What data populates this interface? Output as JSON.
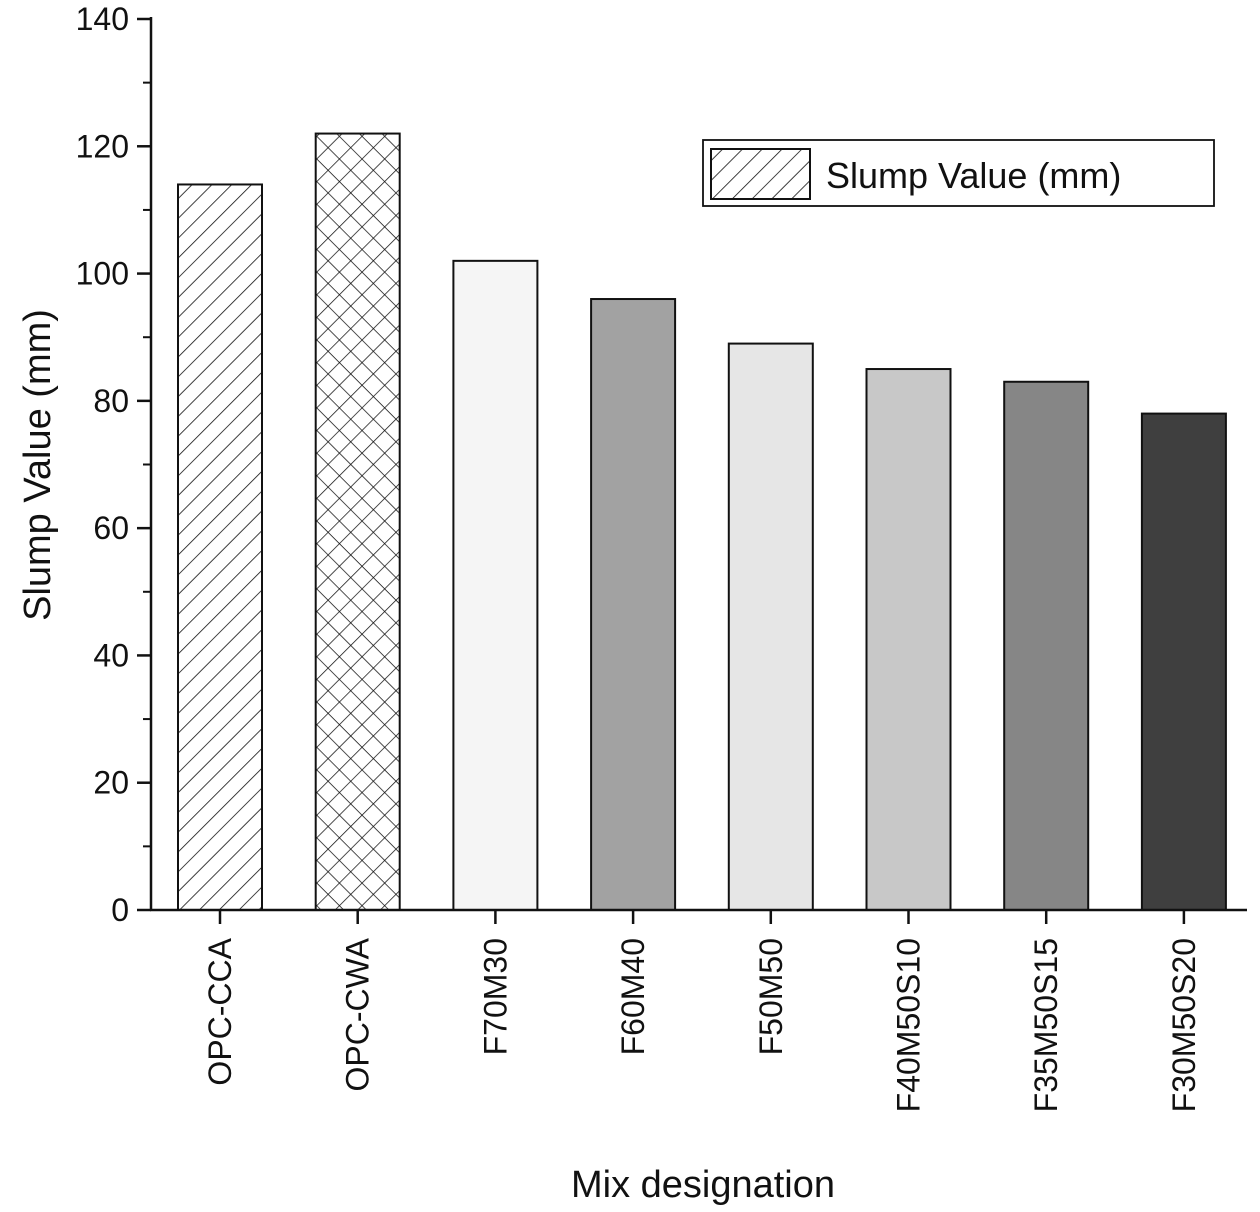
{
  "chart_data": {
    "type": "bar",
    "title": "",
    "xlabel": "Mix designation",
    "ylabel": "Slump Value (mm)",
    "ylim": [
      0,
      140
    ],
    "yticks": [
      0,
      20,
      40,
      60,
      80,
      100,
      120,
      140
    ],
    "categories": [
      "OPC-CCA",
      "OPC-CWA",
      "F70M30",
      "F60M40",
      "F50M50",
      "F40M50S10",
      "F35M50S15",
      "F30M50S20"
    ],
    "series": [
      {
        "name": "Slump Value (mm)",
        "values": [
          114,
          122,
          102,
          96,
          89,
          85,
          83,
          78
        ]
      }
    ],
    "bar_styles": [
      {
        "fill": "#ffffff",
        "pattern": "hatch-diagonal"
      },
      {
        "fill": "#ffffff",
        "pattern": "hatch-cross"
      },
      {
        "fill": "#f5f5f5",
        "pattern": "none"
      },
      {
        "fill": "#a2a2a2",
        "pattern": "none"
      },
      {
        "fill": "#e6e6e6",
        "pattern": "none"
      },
      {
        "fill": "#c8c8c8",
        "pattern": "none"
      },
      {
        "fill": "#868686",
        "pattern": "none"
      },
      {
        "fill": "#3f3f3f",
        "pattern": "none"
      }
    ],
    "legend": {
      "position": "top-right",
      "label": "Slump Value (mm)",
      "pattern": "hatch-diagonal"
    },
    "grid": false
  }
}
